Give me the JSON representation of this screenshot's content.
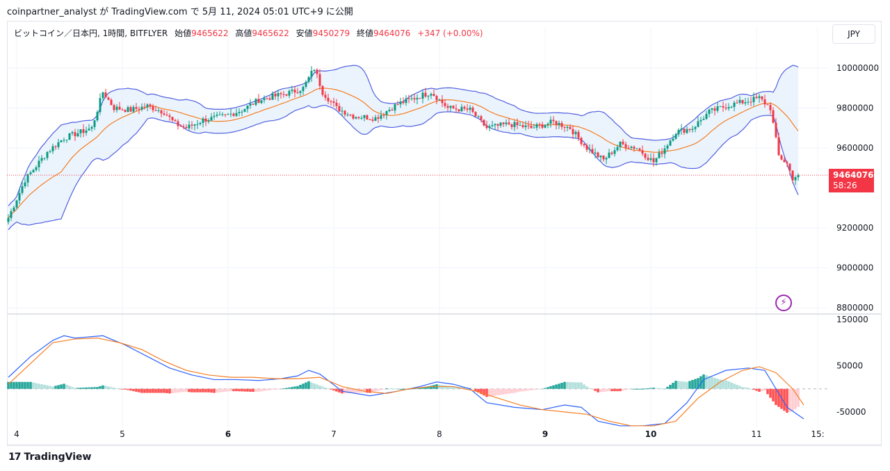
{
  "header": {
    "publish_line": "coinpartner_analyst が TradingView.com で 5月 11, 2024 05:01 UTC+9 に公開"
  },
  "legend": {
    "symbol": "ビットコイン／日本円, 1時間, BITFLYER",
    "open_label": "始値",
    "open_value": "9465622",
    "high_label": "高値",
    "high_value": "9465622",
    "low_label": "安値",
    "low_value": "9450279",
    "close_label": "終値",
    "close_value": "9464076",
    "change": "+347 (+0.00%)"
  },
  "currency_button": "JPY",
  "price_tag": {
    "price": "9464076",
    "countdown": "58:26"
  },
  "brand": {
    "logo": "17",
    "name": "TradingView"
  },
  "colors": {
    "up": "#089981",
    "down": "#f23645",
    "band": "#4f5fe0",
    "basis": "#f57c20",
    "band_fill": "#e3f0fc",
    "macd": "#2962ff",
    "signal": "#f57c20",
    "hist_up_strong": "#26a69a",
    "hist_up_weak": "#b2dfdb",
    "hist_down_strong": "#ff5252",
    "hist_down_weak": "#ffcdd2",
    "tag": "#f23645",
    "bolt": "#9c27b0"
  },
  "icons": {
    "alert": "lightning-bolt-icon",
    "logo": "tradingview-logo-icon"
  },
  "chart_data": [
    {
      "type": "candlestick",
      "title": "ビットコイン／日本円, 1時間, BITFLYER",
      "ylim": [
        8780000,
        10080000
      ],
      "y_ticks": [
        "10000000",
        "9800000",
        "9600000",
        "9200000",
        "9000000",
        "8800000"
      ],
      "x_ticks": [
        "4",
        "5",
        "6",
        "7",
        "8",
        "9",
        "10",
        "11",
        "15:"
      ],
      "bold_x_ticks": [
        "6",
        "9",
        "10"
      ],
      "last_price": 9464076,
      "overlays": [
        "bollinger-upper",
        "bollinger-basis",
        "bollinger-lower"
      ],
      "close_path": [
        [
          0,
          9250000
        ],
        [
          6,
          9440000
        ],
        [
          14,
          9580000
        ],
        [
          20,
          9650000
        ],
        [
          26,
          9680000
        ],
        [
          30,
          9700000
        ],
        [
          34,
          9880000
        ],
        [
          38,
          9800000
        ],
        [
          44,
          9790000
        ],
        [
          50,
          9810000
        ],
        [
          56,
          9780000
        ],
        [
          60,
          9720000
        ],
        [
          64,
          9700000
        ],
        [
          70,
          9740000
        ],
        [
          78,
          9760000
        ],
        [
          84,
          9790000
        ],
        [
          90,
          9840000
        ],
        [
          96,
          9860000
        ],
        [
          102,
          9880000
        ],
        [
          106,
          9900000
        ],
        [
          110,
          10000000
        ],
        [
          113,
          9880000
        ],
        [
          118,
          9800000
        ],
        [
          124,
          9760000
        ],
        [
          132,
          9750000
        ],
        [
          140,
          9820000
        ],
        [
          146,
          9850000
        ],
        [
          152,
          9880000
        ],
        [
          158,
          9800000
        ],
        [
          166,
          9790000
        ],
        [
          172,
          9700000
        ],
        [
          180,
          9720000
        ],
        [
          188,
          9700000
        ],
        [
          196,
          9730000
        ],
        [
          202,
          9700000
        ],
        [
          208,
          9600000
        ],
        [
          214,
          9540000
        ],
        [
          220,
          9620000
        ],
        [
          226,
          9600000
        ],
        [
          232,
          9530000
        ],
        [
          236,
          9600000
        ],
        [
          240,
          9680000
        ],
        [
          246,
          9700000
        ],
        [
          252,
          9780000
        ],
        [
          258,
          9810000
        ],
        [
          264,
          9830000
        ],
        [
          270,
          9850000
        ],
        [
          274,
          9800000
        ],
        [
          277,
          9560000
        ],
        [
          280,
          9520000
        ],
        [
          282,
          9450000
        ],
        [
          284,
          9464076
        ]
      ]
    },
    {
      "type": "macd",
      "ylim": [
        -75000,
        150000
      ],
      "y_ticks": [
        "150000",
        "50000",
        "-50000"
      ],
      "macd_line": [
        [
          0,
          25000
        ],
        [
          8,
          70000
        ],
        [
          16,
          105000
        ],
        [
          20,
          115000
        ],
        [
          24,
          110000
        ],
        [
          30,
          113000
        ],
        [
          34,
          115000
        ],
        [
          42,
          95000
        ],
        [
          50,
          70000
        ],
        [
          58,
          45000
        ],
        [
          66,
          30000
        ],
        [
          74,
          20000
        ],
        [
          82,
          20000
        ],
        [
          90,
          18000
        ],
        [
          98,
          22000
        ],
        [
          104,
          28000
        ],
        [
          108,
          40000
        ],
        [
          112,
          32000
        ],
        [
          120,
          -5000
        ],
        [
          130,
          -15000
        ],
        [
          140,
          -5000
        ],
        [
          148,
          5000
        ],
        [
          154,
          15000
        ],
        [
          160,
          10000
        ],
        [
          166,
          0
        ],
        [
          172,
          -30000
        ],
        [
          182,
          -40000
        ],
        [
          192,
          -45000
        ],
        [
          200,
          -35000
        ],
        [
          206,
          -40000
        ],
        [
          212,
          -70000
        ],
        [
          220,
          -80000
        ],
        [
          228,
          -80000
        ],
        [
          236,
          -75000
        ],
        [
          244,
          -30000
        ],
        [
          250,
          20000
        ],
        [
          258,
          40000
        ],
        [
          266,
          45000
        ],
        [
          272,
          40000
        ],
        [
          276,
          0
        ],
        [
          280,
          -40000
        ],
        [
          286,
          -65000
        ]
      ],
      "signal_line": [
        [
          0,
          10000
        ],
        [
          8,
          55000
        ],
        [
          16,
          100000
        ],
        [
          24,
          108000
        ],
        [
          32,
          110000
        ],
        [
          40,
          100000
        ],
        [
          48,
          85000
        ],
        [
          56,
          60000
        ],
        [
          64,
          40000
        ],
        [
          72,
          30000
        ],
        [
          80,
          25000
        ],
        [
          88,
          25000
        ],
        [
          96,
          22000
        ],
        [
          104,
          22000
        ],
        [
          112,
          25000
        ],
        [
          120,
          5000
        ],
        [
          128,
          -5000
        ],
        [
          136,
          -10000
        ],
        [
          144,
          0
        ],
        [
          152,
          5000
        ],
        [
          160,
          5000
        ],
        [
          168,
          -5000
        ],
        [
          176,
          -20000
        ],
        [
          184,
          -35000
        ],
        [
          192,
          -45000
        ],
        [
          200,
          -50000
        ],
        [
          208,
          -55000
        ],
        [
          216,
          -70000
        ],
        [
          224,
          -80000
        ],
        [
          232,
          -80000
        ],
        [
          240,
          -70000
        ],
        [
          248,
          -20000
        ],
        [
          256,
          15000
        ],
        [
          264,
          40000
        ],
        [
          270,
          48000
        ],
        [
          276,
          35000
        ],
        [
          282,
          0
        ],
        [
          286,
          -35000
        ]
      ]
    }
  ]
}
